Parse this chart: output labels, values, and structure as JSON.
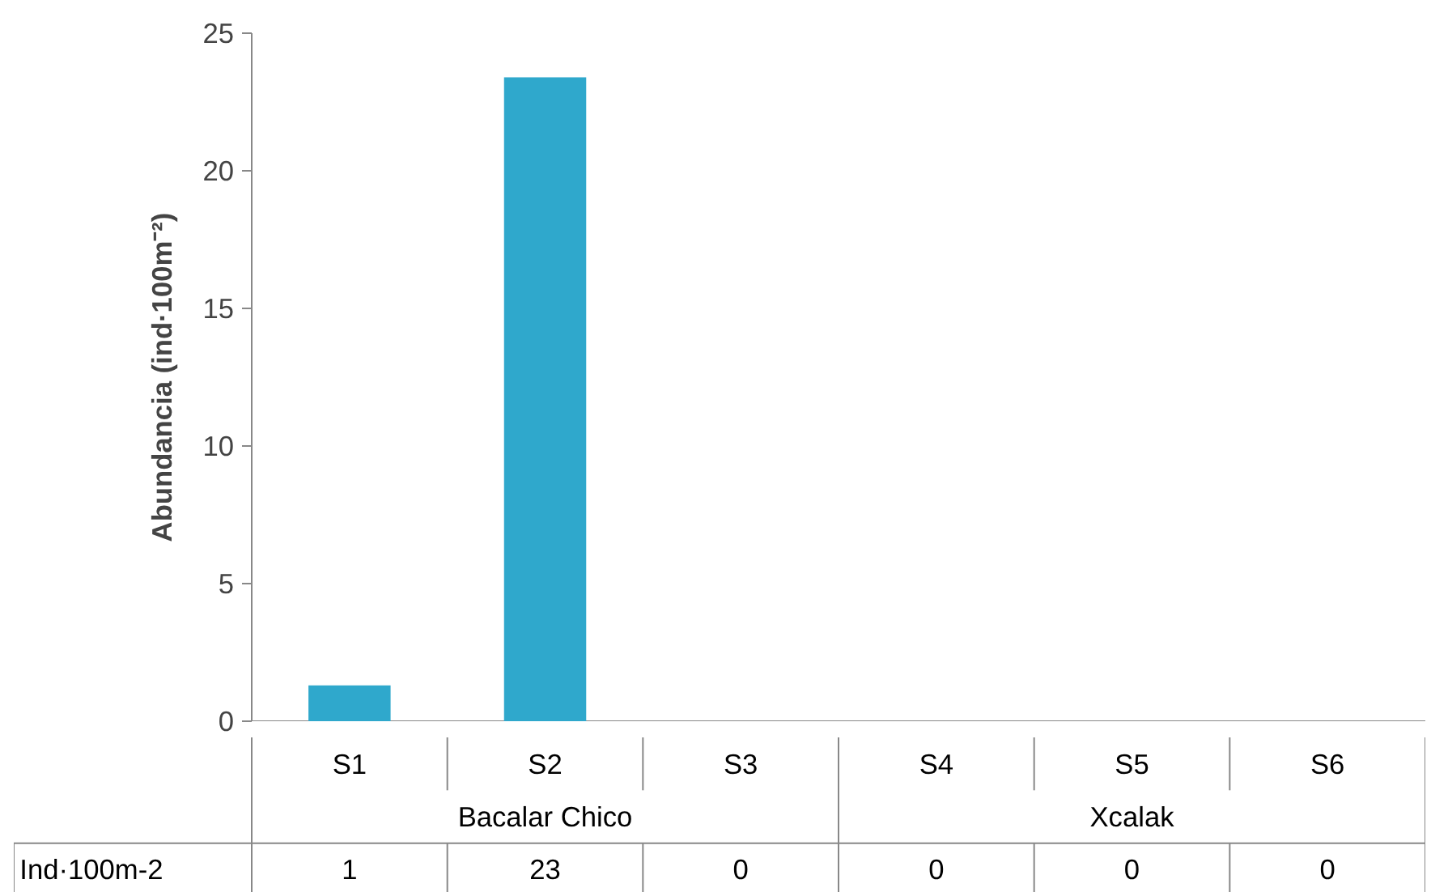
{
  "chart_data": {
    "type": "bar",
    "ylabel": "Abundancia (ind·100m⁻²)",
    "categories": [
      "S1",
      "S2",
      "S3",
      "S4",
      "S5",
      "S6"
    ],
    "series": [
      {
        "name": "Ind·100m-2",
        "color": "#2fa8cc",
        "values": [
          1.3,
          23.4,
          0,
          0,
          0,
          0
        ],
        "value_labels": [
          "1",
          "23",
          "0",
          "0",
          "0",
          "0"
        ]
      }
    ],
    "annotations": [
      "Bacalar Chico",
      "Xcalak"
    ],
    "ylim": [
      0,
      25
    ],
    "yticks": [
      0,
      5,
      10,
      15,
      20,
      25
    ],
    "grid": false
  }
}
